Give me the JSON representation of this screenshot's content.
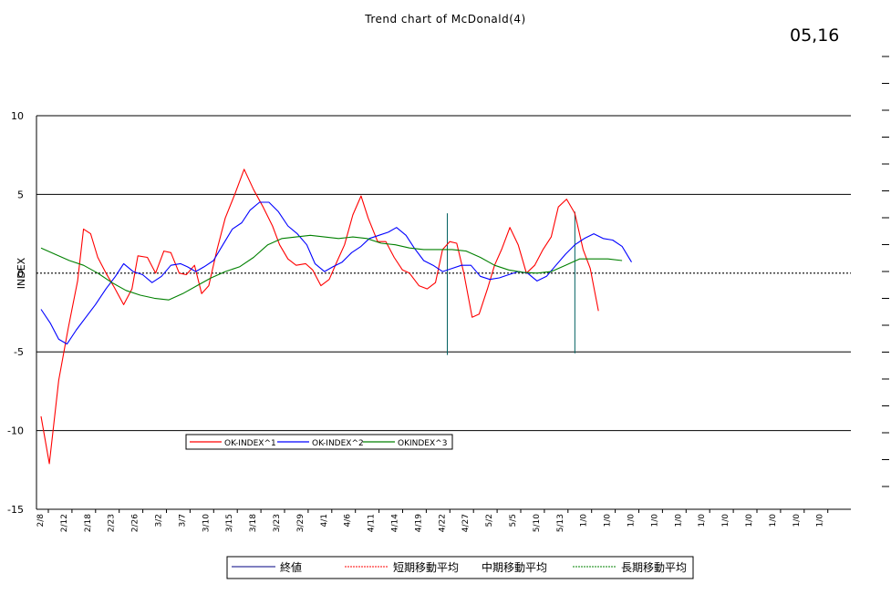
{
  "title": "Trend chart of McDonald(4)",
  "stamp": "05,16",
  "chart_data": {
    "type": "line",
    "ylabel": "INDEX",
    "ylim": [
      -15,
      10
    ],
    "yticks": [
      10,
      5,
      0,
      -5,
      -10,
      -15
    ],
    "grid": "horizontal",
    "x_tick_labels": [
      "2/8",
      "2/12",
      "2/18",
      "2/23",
      "2/26",
      "3/2",
      "3/7",
      "3/10",
      "3/15",
      "3/18",
      "3/23",
      "3/29",
      "4/1",
      "4/6",
      "4/11",
      "4/14",
      "4/19",
      "4/22",
      "4/27",
      "5/2",
      "5/5",
      "5/10",
      "5/13",
      "1/0",
      "1/0",
      "1/0",
      "1/0",
      "1/0",
      "1/0",
      "1/0",
      "1/0",
      "1/0",
      "1/0",
      "1/0"
    ],
    "legend_inner": {
      "placement": "lower-left",
      "entries": [
        {
          "name": "OK-INDEX^1",
          "color": "#ff0000"
        },
        {
          "name": "OK-INDEX^2",
          "color": "#0000ff"
        },
        {
          "name": "OKINDEX^3",
          "color": "#008000"
        }
      ]
    },
    "legend_outer": {
      "placement": "bottom",
      "entries": [
        {
          "name": "終値",
          "color": "#000080",
          "style": "solid"
        },
        {
          "name": "短期移動平均",
          "color": "#ff0000",
          "style": "dashed"
        },
        {
          "name": "中期移動平均",
          "color": "",
          "style": "none"
        },
        {
          "name": "長期移動平均",
          "color": "#008000",
          "style": "dashed"
        }
      ]
    },
    "series": [
      {
        "name": "OK-INDEX^1",
        "color": "#ff0000",
        "points": [
          [
            0,
            -9.1
          ],
          [
            0.35,
            -12.1
          ],
          [
            0.75,
            -6.8
          ],
          [
            1.15,
            -3.5
          ],
          [
            1.55,
            -0.5
          ],
          [
            1.8,
            2.8
          ],
          [
            2.1,
            2.5
          ],
          [
            2.4,
            1.0
          ],
          [
            2.75,
            0.0
          ],
          [
            3.1,
            -0.9
          ],
          [
            3.5,
            -2.0
          ],
          [
            3.85,
            -1.0
          ],
          [
            4.1,
            1.1
          ],
          [
            4.5,
            1.0
          ],
          [
            4.85,
            0.0
          ],
          [
            5.2,
            1.4
          ],
          [
            5.5,
            1.3
          ],
          [
            5.85,
            0.0
          ],
          [
            6.15,
            -0.1
          ],
          [
            6.5,
            0.5
          ],
          [
            6.8,
            -1.3
          ],
          [
            7.1,
            -0.8
          ],
          [
            7.45,
            1.5
          ],
          [
            7.8,
            3.5
          ],
          [
            8.2,
            5.0
          ],
          [
            8.6,
            6.6
          ],
          [
            9.0,
            5.3
          ],
          [
            9.4,
            4.2
          ],
          [
            9.8,
            3.0
          ],
          [
            10.1,
            1.8
          ],
          [
            10.45,
            0.9
          ],
          [
            10.8,
            0.5
          ],
          [
            11.2,
            0.6
          ],
          [
            11.5,
            0.2
          ],
          [
            11.85,
            -0.8
          ],
          [
            12.2,
            -0.4
          ],
          [
            12.55,
            0.8
          ],
          [
            12.85,
            1.8
          ],
          [
            13.2,
            3.7
          ],
          [
            13.55,
            4.9
          ],
          [
            13.85,
            3.5
          ],
          [
            14.25,
            2.0
          ],
          [
            14.6,
            2.0
          ],
          [
            14.95,
            1.0
          ],
          [
            15.3,
            0.2
          ],
          [
            15.6,
            0.0
          ],
          [
            16.0,
            -0.8
          ],
          [
            16.35,
            -1.0
          ],
          [
            16.7,
            -0.6
          ],
          [
            17.0,
            1.5
          ],
          [
            17.3,
            2.0
          ],
          [
            17.6,
            1.9
          ],
          [
            17.9,
            0.0
          ],
          [
            18.25,
            -2.8
          ],
          [
            18.55,
            -2.6
          ],
          [
            18.9,
            -1.0
          ],
          [
            19.2,
            0.5
          ],
          [
            19.5,
            1.5
          ],
          [
            19.85,
            2.9
          ],
          [
            20.2,
            1.8
          ],
          [
            20.55,
            0.0
          ],
          [
            20.9,
            0.5
          ],
          [
            21.25,
            1.5
          ],
          [
            21.6,
            2.3
          ],
          [
            21.9,
            4.2
          ],
          [
            22.25,
            4.7
          ],
          [
            22.6,
            3.8
          ],
          [
            22.95,
            1.5
          ],
          [
            23.25,
            0.3
          ],
          [
            23.6,
            -2.4
          ]
        ]
      },
      {
        "name": "OK-INDEX^2",
        "color": "#0000ff",
        "points": [
          [
            0,
            -2.3
          ],
          [
            0.4,
            -3.2
          ],
          [
            0.75,
            -4.2
          ],
          [
            1.1,
            -4.5
          ],
          [
            1.5,
            -3.6
          ],
          [
            1.9,
            -2.8
          ],
          [
            2.3,
            -2.0
          ],
          [
            2.75,
            -1.0
          ],
          [
            3.15,
            -0.2
          ],
          [
            3.5,
            0.6
          ],
          [
            3.9,
            0.1
          ],
          [
            4.3,
            -0.1
          ],
          [
            4.7,
            -0.6
          ],
          [
            5.1,
            -0.2
          ],
          [
            5.5,
            0.5
          ],
          [
            5.9,
            0.6
          ],
          [
            6.2,
            0.4
          ],
          [
            6.55,
            0.1
          ],
          [
            6.9,
            0.4
          ],
          [
            7.3,
            0.8
          ],
          [
            7.7,
            1.8
          ],
          [
            8.1,
            2.8
          ],
          [
            8.5,
            3.2
          ],
          [
            8.85,
            4.0
          ],
          [
            9.25,
            4.5
          ],
          [
            9.65,
            4.5
          ],
          [
            10.05,
            3.9
          ],
          [
            10.45,
            3.0
          ],
          [
            10.85,
            2.5
          ],
          [
            11.25,
            1.8
          ],
          [
            11.6,
            0.6
          ],
          [
            12.0,
            0.1
          ],
          [
            12.35,
            0.4
          ],
          [
            12.75,
            0.7
          ],
          [
            13.15,
            1.3
          ],
          [
            13.55,
            1.7
          ],
          [
            13.9,
            2.2
          ],
          [
            14.3,
            2.4
          ],
          [
            14.7,
            2.6
          ],
          [
            15.05,
            2.9
          ],
          [
            15.45,
            2.4
          ],
          [
            15.8,
            1.6
          ],
          [
            16.2,
            0.8
          ],
          [
            16.6,
            0.5
          ],
          [
            17.0,
            0.1
          ],
          [
            17.4,
            0.3
          ],
          [
            17.8,
            0.5
          ],
          [
            18.2,
            0.5
          ],
          [
            18.6,
            -0.2
          ],
          [
            19.0,
            -0.4
          ],
          [
            19.4,
            -0.3
          ],
          [
            19.8,
            -0.1
          ],
          [
            20.2,
            0.1
          ],
          [
            20.6,
            0.0
          ],
          [
            21.0,
            -0.5
          ],
          [
            21.4,
            -0.2
          ],
          [
            21.8,
            0.5
          ],
          [
            22.2,
            1.2
          ],
          [
            22.6,
            1.8
          ],
          [
            23.0,
            2.2
          ],
          [
            23.4,
            2.5
          ],
          [
            23.8,
            2.2
          ],
          [
            24.2,
            2.1
          ],
          [
            24.6,
            1.7
          ],
          [
            25.0,
            0.7
          ]
        ]
      },
      {
        "name": "OKINDEX^3",
        "color": "#008000",
        "points": [
          [
            0,
            1.6
          ],
          [
            0.6,
            1.2
          ],
          [
            1.2,
            0.8
          ],
          [
            1.8,
            0.5
          ],
          [
            2.4,
            0.0
          ],
          [
            3.0,
            -0.6
          ],
          [
            3.6,
            -1.1
          ],
          [
            4.2,
            -1.4
          ],
          [
            4.8,
            -1.6
          ],
          [
            5.4,
            -1.7
          ],
          [
            6.0,
            -1.3
          ],
          [
            6.6,
            -0.8
          ],
          [
            7.2,
            -0.3
          ],
          [
            7.8,
            0.1
          ],
          [
            8.4,
            0.4
          ],
          [
            9.0,
            1.0
          ],
          [
            9.6,
            1.8
          ],
          [
            10.2,
            2.2
          ],
          [
            10.8,
            2.3
          ],
          [
            11.4,
            2.4
          ],
          [
            12.0,
            2.3
          ],
          [
            12.6,
            2.2
          ],
          [
            13.2,
            2.3
          ],
          [
            13.8,
            2.2
          ],
          [
            14.4,
            1.9
          ],
          [
            15.0,
            1.8
          ],
          [
            15.6,
            1.6
          ],
          [
            16.2,
            1.5
          ],
          [
            16.8,
            1.5
          ],
          [
            17.4,
            1.5
          ],
          [
            18.0,
            1.4
          ],
          [
            18.6,
            1.0
          ],
          [
            19.2,
            0.5
          ],
          [
            19.8,
            0.2
          ],
          [
            20.4,
            0.05
          ],
          [
            21.0,
            0.0
          ],
          [
            21.6,
            0.1
          ],
          [
            22.2,
            0.5
          ],
          [
            22.8,
            0.9
          ],
          [
            23.4,
            0.9
          ],
          [
            24.0,
            0.9
          ],
          [
            24.6,
            0.8
          ]
        ]
      }
    ],
    "vertical_markers": [
      {
        "x": 17.2,
        "from": 3.8,
        "to": -5.2
      },
      {
        "x": 22.6,
        "from": 3.9,
        "to": -5.1
      }
    ]
  }
}
